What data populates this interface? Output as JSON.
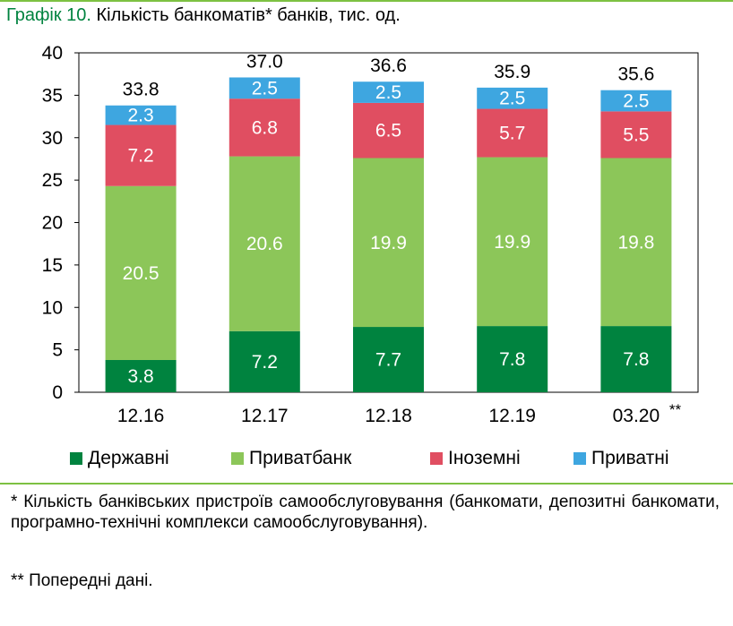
{
  "title": {
    "prefix": "Графік 10.",
    "text": "Кількість банкоматів* банків, тис. од."
  },
  "chart_data": {
    "type": "bar",
    "stacked": true,
    "categories": [
      "12.16",
      "12.17",
      "12.18",
      "12.19",
      "03.20"
    ],
    "category_marks": [
      "",
      "",
      "",
      "",
      "**"
    ],
    "series": [
      {
        "name": "Державні",
        "color": "#00833f",
        "values": [
          3.8,
          7.2,
          7.7,
          7.8,
          7.8
        ]
      },
      {
        "name": "Приватбанк",
        "color": "#8cc659",
        "values": [
          20.5,
          20.6,
          19.9,
          19.9,
          19.8
        ]
      },
      {
        "name": "Іноземні",
        "color": "#e04e61",
        "values": [
          7.2,
          6.8,
          6.5,
          5.7,
          5.5
        ]
      },
      {
        "name": "Приватні",
        "color": "#3ea6e0",
        "values": [
          2.3,
          2.5,
          2.5,
          2.5,
          2.5
        ]
      }
    ],
    "totals": [
      "33.8",
      "37.0",
      "36.6",
      "35.9",
      "35.6"
    ],
    "ylim": [
      0,
      40
    ],
    "yticks": [
      0,
      5,
      10,
      15,
      20,
      25,
      30,
      35,
      40
    ],
    "grid": false,
    "legend_position": "bottom"
  },
  "footnotes": {
    "note1": "* Кількість банківських пристроїв самообслуговування (банкомати, депозитні банкомати, програмно-технічні комплекси самообслуговування).",
    "note2": "** Попередні дані."
  }
}
